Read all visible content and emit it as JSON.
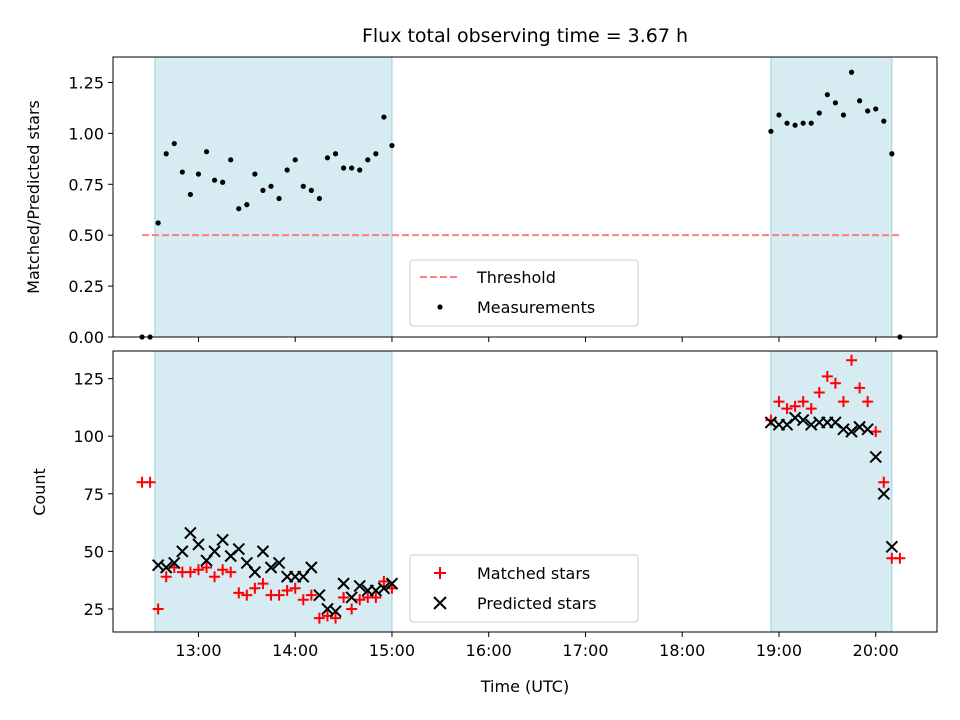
{
  "chart_data": [
    {
      "type": "scatter",
      "panel": "top",
      "title": "Flux total observing time = 3.67 h",
      "xlabel": "",
      "ylabel": "Matched/Predicted stars",
      "ylim": [
        0,
        1.375
      ],
      "yticks": [
        0.0,
        0.25,
        0.5,
        0.75,
        1.0,
        1.25
      ],
      "ytick_labels": [
        "0.00",
        "0.25",
        "0.50",
        "0.75",
        "1.00",
        "1.25"
      ],
      "xticks": [
        "13:00",
        "14:00",
        "15:00",
        "16:00",
        "17:00",
        "18:00",
        "19:00",
        "20:00"
      ],
      "xticklabels_visible": false,
      "grid": false,
      "legend_position": "lower-center",
      "shaded_intervals": [
        [
          "12:33",
          "15:00"
        ],
        [
          "18:55",
          "20:10"
        ]
      ],
      "series": [
        {
          "name": "Threshold",
          "kind": "dashed-line",
          "color": "#ff7f7f",
          "x": [
            "12:25",
            "20:15"
          ],
          "y": [
            0.5,
            0.5
          ]
        },
        {
          "name": "Measurements",
          "kind": "dots",
          "color": "#000000",
          "x": [
            "12:25",
            "12:30",
            "12:35",
            "12:40",
            "12:45",
            "12:50",
            "12:55",
            "13:00",
            "13:05",
            "13:10",
            "13:15",
            "13:20",
            "13:25",
            "13:30",
            "13:35",
            "13:40",
            "13:45",
            "13:50",
            "13:55",
            "14:00",
            "14:05",
            "14:10",
            "14:15",
            "14:20",
            "14:25",
            "14:30",
            "14:35",
            "14:40",
            "14:45",
            "14:50",
            "14:55",
            "15:00",
            "18:55",
            "19:00",
            "19:05",
            "19:10",
            "19:15",
            "19:20",
            "19:25",
            "19:30",
            "19:35",
            "19:40",
            "19:45",
            "19:50",
            "19:55",
            "20:00",
            "20:05",
            "20:10",
            "20:15"
          ],
          "y": [
            0.0,
            0.0,
            0.56,
            0.9,
            0.95,
            0.81,
            0.7,
            0.8,
            0.91,
            0.77,
            0.76,
            0.87,
            0.63,
            0.65,
            0.8,
            0.72,
            0.74,
            0.68,
            0.82,
            0.87,
            0.74,
            0.72,
            0.68,
            0.88,
            0.9,
            0.83,
            0.83,
            0.82,
            0.87,
            0.9,
            1.08,
            0.94,
            1.01,
            1.09,
            1.05,
            1.04,
            1.05,
            1.05,
            1.1,
            1.19,
            1.15,
            1.09,
            1.3,
            1.16,
            1.11,
            1.12,
            1.06,
            0.9,
            0.0
          ]
        }
      ]
    },
    {
      "type": "scatter",
      "panel": "bottom",
      "title": "",
      "xlabel": "Time (UTC)",
      "ylabel": "Count",
      "ylim": [
        15,
        137
      ],
      "yticks": [
        25,
        50,
        75,
        100,
        125
      ],
      "ytick_labels": [
        "25",
        "50",
        "75",
        "100",
        "125"
      ],
      "xticks": [
        "13:00",
        "14:00",
        "15:00",
        "16:00",
        "17:00",
        "18:00",
        "19:00",
        "20:00"
      ],
      "grid": false,
      "legend_position": "lower-center",
      "shaded_intervals": [
        [
          "12:33",
          "15:00"
        ],
        [
          "18:55",
          "20:10"
        ]
      ],
      "series": [
        {
          "name": "Matched stars",
          "marker": "plus",
          "color": "#ff0000",
          "x": [
            "12:25",
            "12:30",
            "12:35",
            "12:40",
            "12:45",
            "12:50",
            "12:55",
            "13:00",
            "13:05",
            "13:10",
            "13:15",
            "13:20",
            "13:25",
            "13:30",
            "13:35",
            "13:40",
            "13:45",
            "13:50",
            "13:55",
            "14:00",
            "14:05",
            "14:10",
            "14:15",
            "14:20",
            "14:25",
            "14:30",
            "14:35",
            "14:40",
            "14:45",
            "14:50",
            "14:55",
            "15:00",
            "18:55",
            "19:00",
            "19:05",
            "19:10",
            "19:15",
            "19:20",
            "19:25",
            "19:30",
            "19:35",
            "19:40",
            "19:45",
            "19:50",
            "19:55",
            "20:00",
            "20:05",
            "20:10",
            "20:15"
          ],
          "y": [
            80,
            80,
            25,
            39,
            43,
            41,
            41,
            42,
            43,
            39,
            42,
            41,
            32,
            31,
            34,
            36,
            31,
            31,
            33,
            34,
            29,
            31,
            21,
            22,
            21,
            30,
            25,
            29,
            30,
            30,
            37,
            34,
            107,
            115,
            112,
            113,
            115,
            112,
            119,
            126,
            123,
            115,
            133,
            121,
            115,
            102,
            80,
            47,
            47
          ]
        },
        {
          "name": "Predicted stars",
          "marker": "x",
          "color": "#000000",
          "x": [
            "12:35",
            "12:40",
            "12:45",
            "12:50",
            "12:55",
            "13:00",
            "13:05",
            "13:10",
            "13:15",
            "13:20",
            "13:25",
            "13:30",
            "13:35",
            "13:40",
            "13:45",
            "13:50",
            "13:55",
            "14:00",
            "14:05",
            "14:10",
            "14:15",
            "14:20",
            "14:25",
            "14:30",
            "14:35",
            "14:40",
            "14:45",
            "14:50",
            "14:55",
            "15:00",
            "18:55",
            "19:00",
            "19:05",
            "19:10",
            "19:15",
            "19:20",
            "19:25",
            "19:30",
            "19:35",
            "19:40",
            "19:45",
            "19:50",
            "19:55",
            "20:00",
            "20:05",
            "20:10"
          ],
          "y": [
            44,
            43,
            45,
            50,
            58,
            53,
            46,
            50,
            55,
            48,
            51,
            45,
            41,
            50,
            43,
            45,
            39,
            39,
            39,
            43,
            31,
            25,
            24,
            36,
            30,
            35,
            33,
            33,
            34,
            36,
            106,
            105,
            105,
            108,
            107,
            105,
            106,
            106,
            106,
            103,
            102,
            104,
            103,
            91,
            75,
            52
          ]
        }
      ]
    }
  ]
}
